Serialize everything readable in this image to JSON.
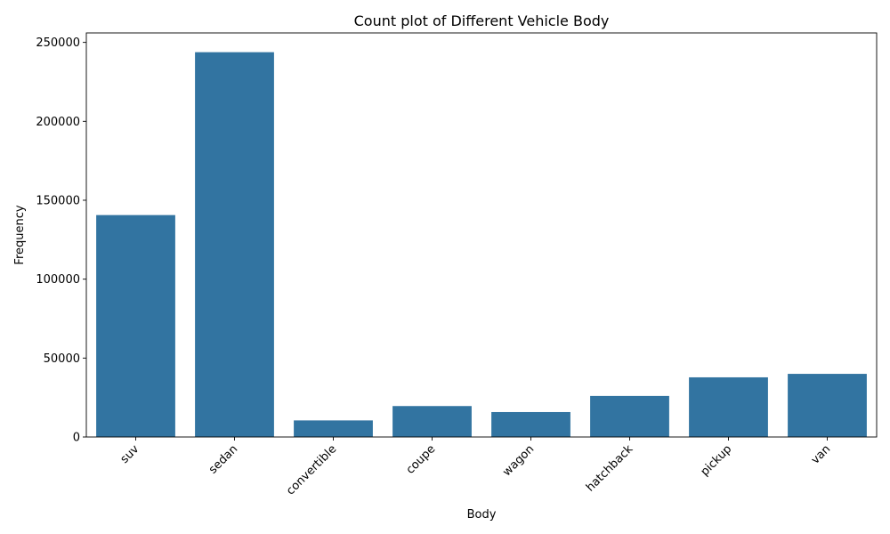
{
  "chart_data": {
    "type": "bar",
    "title": "Count plot of Different Vehicle Body",
    "xlabel": "Body",
    "ylabel": "Frequency",
    "categories": [
      "suv",
      "sedan",
      "convertible",
      "coupe",
      "wagon",
      "hatchback",
      "pickup",
      "van"
    ],
    "values": [
      140600,
      243800,
      10500,
      19600,
      15800,
      26000,
      37800,
      40000
    ],
    "ylim": [
      0,
      256000
    ],
    "yticks": [
      0,
      50000,
      100000,
      150000,
      200000,
      250000
    ],
    "ytick_labels": [
      "0",
      "50000",
      "100000",
      "150000",
      "200000",
      "250000"
    ],
    "bar_color": "#3274a1",
    "grid": false,
    "legend": "none",
    "xtick_rotation_deg": 45
  }
}
